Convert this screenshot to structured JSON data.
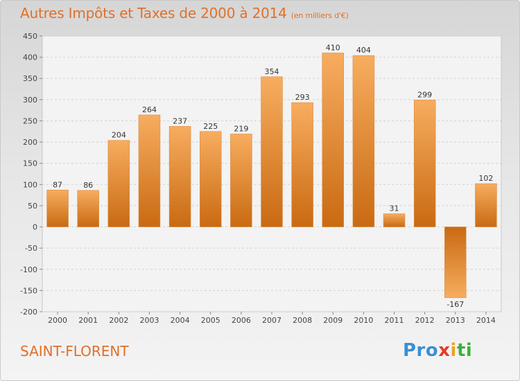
{
  "header": {
    "title": "Autres Impôts et Taxes de 2000 à 2014",
    "subtitle": "(en milliers d'€)"
  },
  "footer": {
    "location": "SAINT-FLORENT",
    "logo": [
      "Pro",
      "x",
      "i",
      "ti"
    ]
  },
  "colors": {
    "accent": "#e0702a",
    "bar_light": "#f5a85a",
    "bar_dark": "#c96a12"
  },
  "chart_data": {
    "type": "bar",
    "title": "Autres Impôts et Taxes de 2000 à 2014",
    "subtitle": "(en milliers d'€)",
    "categories": [
      "2000",
      "2001",
      "2002",
      "2003",
      "2004",
      "2005",
      "2006",
      "2007",
      "2008",
      "2009",
      "2010",
      "2011",
      "2012",
      "2013",
      "2014"
    ],
    "values": [
      87,
      86,
      204,
      264,
      237,
      225,
      219,
      354,
      293,
      410,
      404,
      31,
      299,
      -167,
      102
    ],
    "ylim": [
      -200,
      450
    ],
    "yticks": [
      -200,
      -150,
      -100,
      -50,
      0,
      50,
      100,
      150,
      200,
      250,
      300,
      350,
      400,
      450
    ],
    "grid": true,
    "data_labels": true,
    "legend": "none"
  }
}
